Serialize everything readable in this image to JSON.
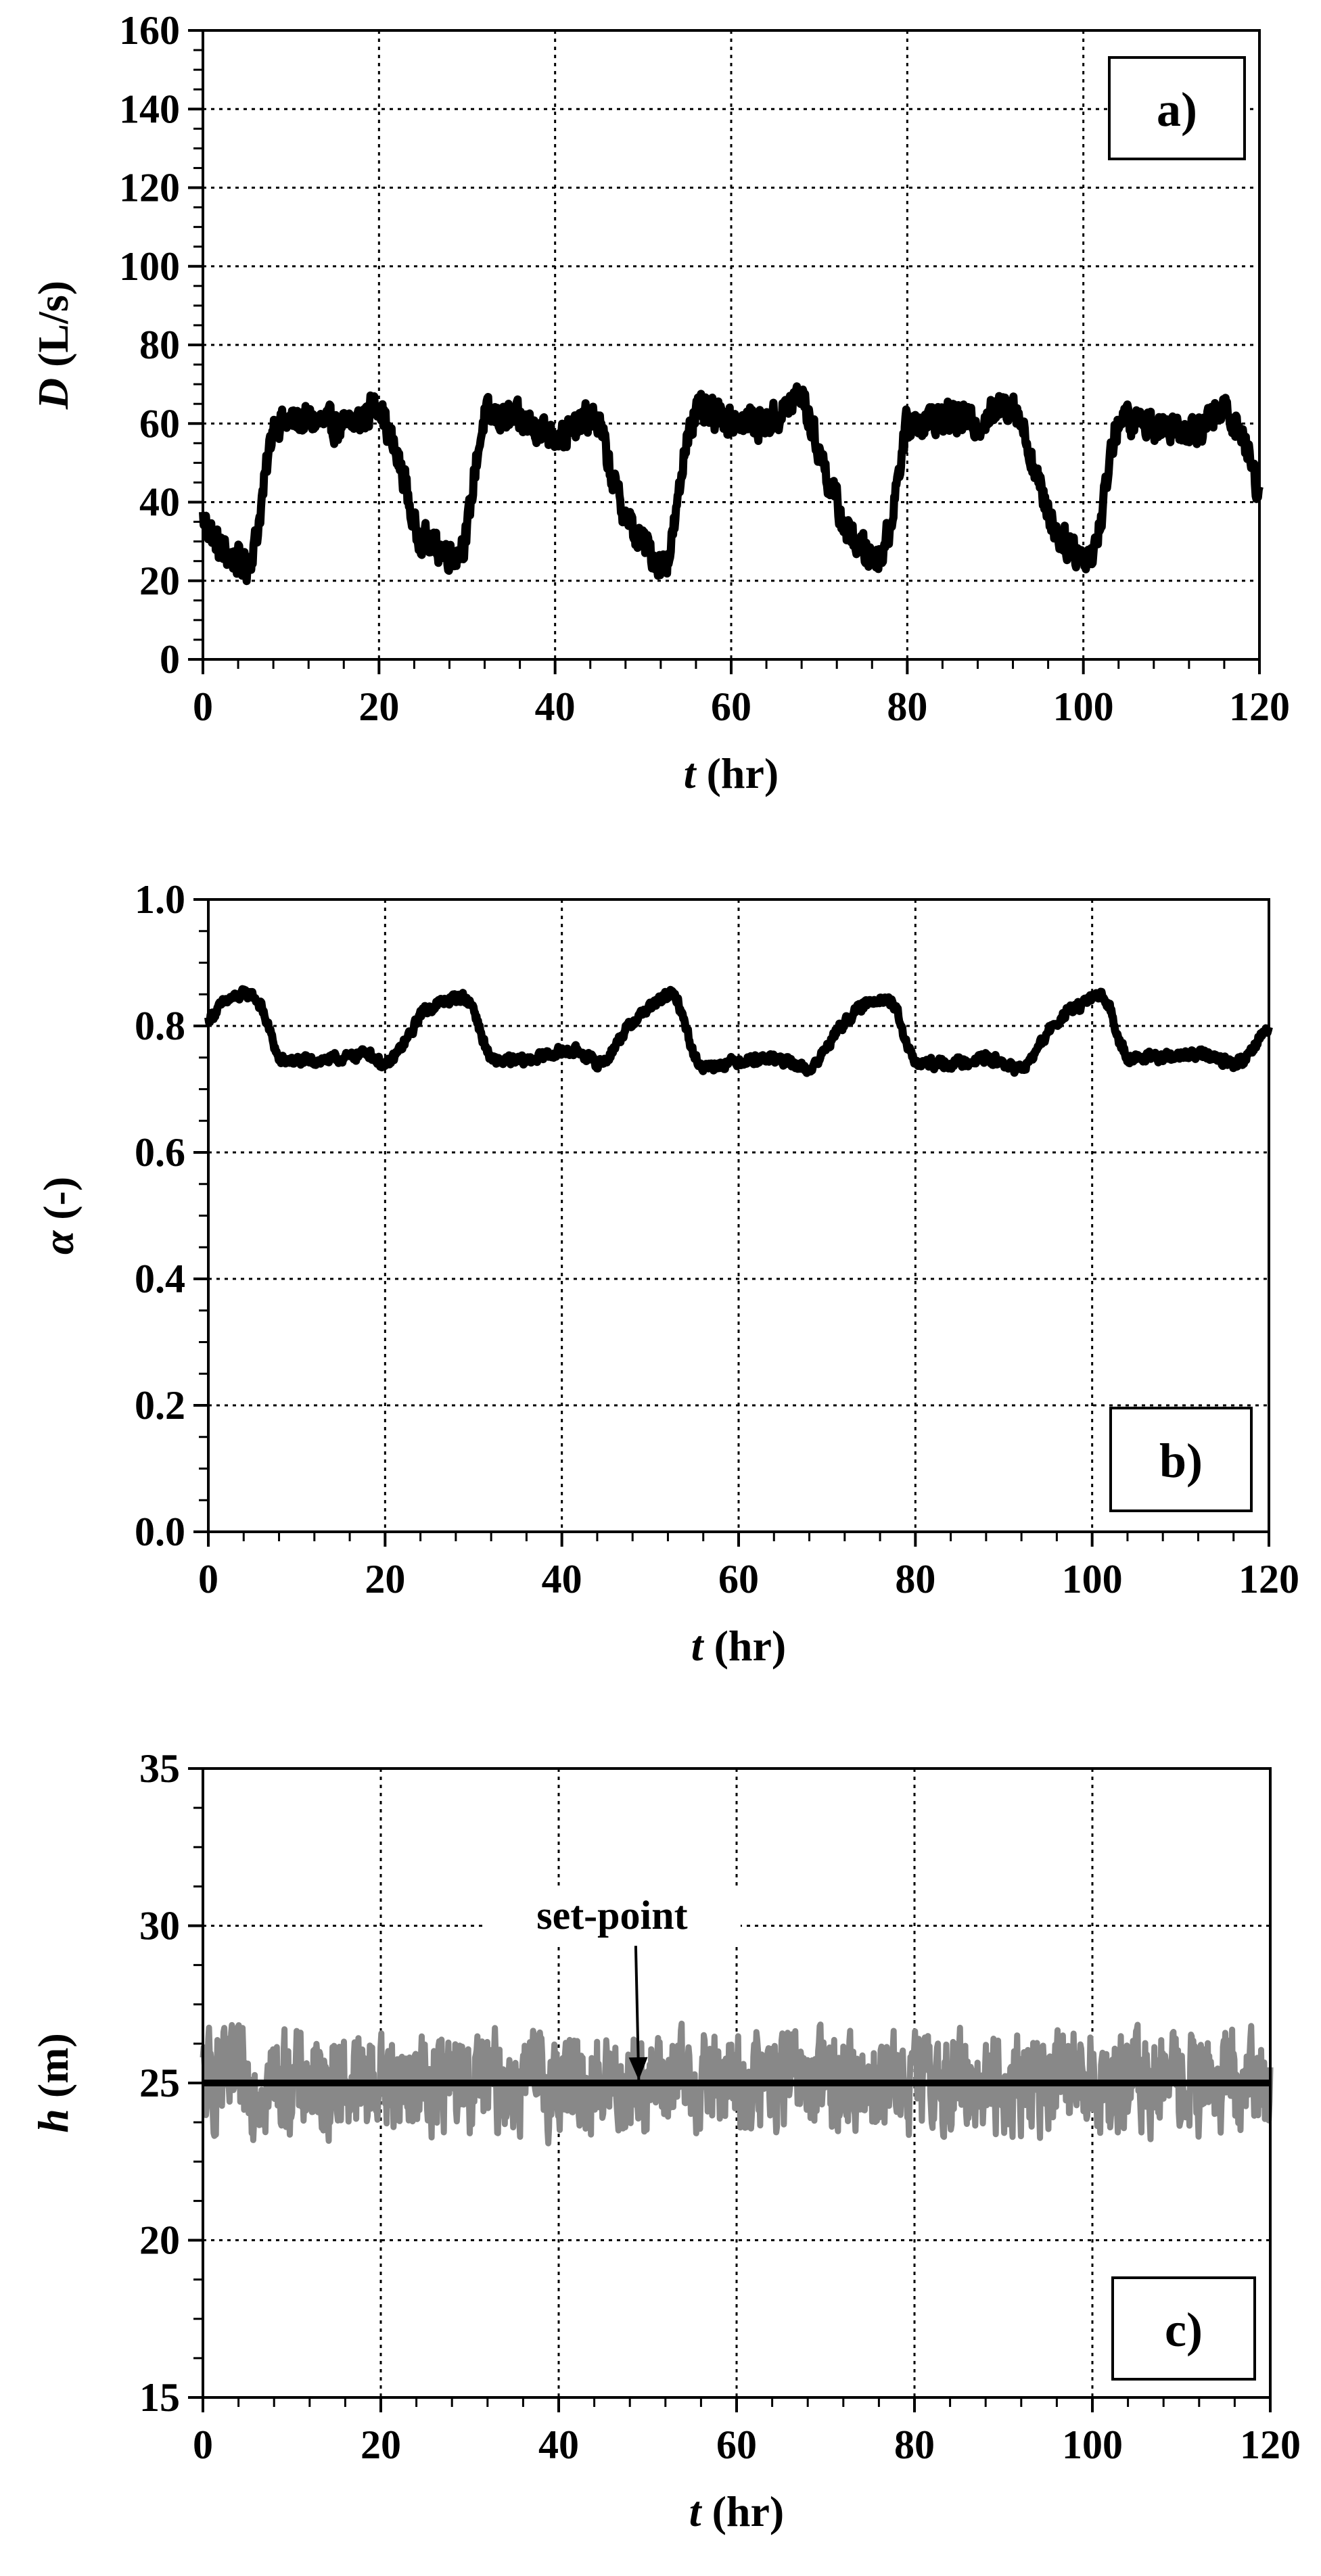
{
  "chart_data": [
    {
      "type": "line",
      "panel_label": "a)",
      "xlabel_var": "t",
      "xlabel_unit": " (hr)",
      "ylabel_var": "D",
      "ylabel_unit": " (L/s)",
      "xlim": [
        0,
        120
      ],
      "ylim": [
        0,
        160
      ],
      "xticks": [
        0,
        20,
        40,
        60,
        80,
        100,
        120
      ],
      "yticks": [
        0,
        20,
        40,
        60,
        80,
        100,
        120,
        140,
        160
      ],
      "xtick_labels": [
        "0",
        "20",
        "40",
        "60",
        "80",
        "100",
        "120"
      ],
      "ytick_labels": [
        "0",
        "20",
        "40",
        "60",
        "80",
        "100",
        "120",
        "140",
        "160"
      ],
      "grid": true,
      "series": [
        {
          "color": "#000000",
          "noise": 3.5,
          "x": [
            0,
            2,
            4,
            5,
            6,
            7,
            8,
            12,
            16,
            18,
            20,
            21,
            23,
            24,
            26,
            28,
            29,
            30,
            31,
            32,
            36,
            40,
            42,
            44,
            45,
            47,
            49,
            51,
            52,
            53,
            54,
            55,
            56,
            60,
            64,
            66,
            68,
            69,
            71,
            73,
            75,
            76,
            77,
            78,
            79,
            80,
            84,
            88,
            90,
            92,
            93,
            95,
            97,
            99,
            100,
            101,
            102,
            103,
            104,
            108,
            112,
            114,
            116,
            117,
            118,
            119,
            120
          ],
          "y": [
            36,
            28,
            25,
            24,
            30,
            45,
            60,
            61,
            59,
            61,
            66,
            58,
            45,
            33,
            29,
            27,
            27,
            32,
            50,
            62,
            61,
            57,
            58,
            62,
            60,
            42,
            32,
            27,
            24,
            27,
            40,
            58,
            63,
            61,
            60,
            63,
            68,
            60,
            46,
            33,
            28,
            26,
            27,
            33,
            48,
            60,
            62,
            60,
            63,
            66,
            60,
            44,
            32,
            28,
            26,
            27,
            35,
            52,
            61,
            60,
            59,
            60,
            64,
            61,
            58,
            50,
            42
          ]
        }
      ]
    },
    {
      "type": "line",
      "panel_label": "b)",
      "xlabel_var": "t",
      "xlabel_unit": " (hr)",
      "ylabel_var": "α",
      "ylabel_unit": " (-)",
      "xlim": [
        0,
        120
      ],
      "ylim": [
        0,
        1.0
      ],
      "xticks": [
        0,
        20,
        40,
        60,
        80,
        100,
        120
      ],
      "yticks": [
        0,
        0.2,
        0.4,
        0.6,
        0.8,
        1.0
      ],
      "xtick_labels": [
        "0",
        "20",
        "40",
        "60",
        "80",
        "100",
        "120"
      ],
      "ytick_labels": [
        "0.0",
        "0.2",
        "0.4",
        "0.6",
        "0.8",
        "1.0"
      ],
      "grid": true,
      "series": [
        {
          "color": "#000000",
          "noise": 0.007,
          "x": [
            0,
            2,
            4,
            5,
            6,
            7,
            8,
            12,
            16,
            18,
            20,
            21,
            23,
            24,
            26,
            28,
            29,
            30,
            31,
            32,
            36,
            40,
            42,
            44,
            45,
            47,
            49,
            51,
            52,
            53,
            54,
            55,
            56,
            60,
            64,
            66,
            68,
            69,
            71,
            73,
            75,
            76,
            77,
            78,
            79,
            80,
            84,
            88,
            90,
            92,
            93,
            95,
            97,
            99,
            100,
            101,
            102,
            103,
            104,
            108,
            112,
            114,
            116,
            117,
            118,
            119,
            120
          ],
          "y": [
            0.81,
            0.84,
            0.85,
            0.85,
            0.83,
            0.79,
            0.745,
            0.745,
            0.75,
            0.76,
            0.735,
            0.75,
            0.79,
            0.82,
            0.835,
            0.845,
            0.845,
            0.83,
            0.78,
            0.745,
            0.745,
            0.76,
            0.76,
            0.74,
            0.745,
            0.79,
            0.82,
            0.84,
            0.85,
            0.845,
            0.8,
            0.75,
            0.735,
            0.745,
            0.75,
            0.74,
            0.73,
            0.745,
            0.79,
            0.82,
            0.84,
            0.845,
            0.84,
            0.82,
            0.77,
            0.74,
            0.74,
            0.75,
            0.74,
            0.73,
            0.745,
            0.79,
            0.82,
            0.835,
            0.845,
            0.845,
            0.83,
            0.78,
            0.75,
            0.75,
            0.755,
            0.75,
            0.74,
            0.745,
            0.76,
            0.785,
            0.795
          ]
        }
      ]
    },
    {
      "type": "line",
      "panel_label": "c)",
      "xlabel_var": "t",
      "xlabel_unit": " (hr)",
      "ylabel_var": "h",
      "ylabel_unit": " (m)",
      "xlim": [
        0,
        120
      ],
      "ylim": [
        15,
        35
      ],
      "xticks": [
        0,
        20,
        40,
        60,
        80,
        100,
        120
      ],
      "yticks": [
        15,
        20,
        25,
        30,
        35
      ],
      "xtick_labels": [
        "0",
        "20",
        "40",
        "60",
        "80",
        "100",
        "120"
      ],
      "ytick_labels": [
        "15",
        "20",
        "25",
        "30",
        "35"
      ],
      "grid": true,
      "series": [
        {
          "color": "#888888",
          "noise": 1.4,
          "x": [
            0,
            120
          ],
          "y": [
            25,
            25
          ]
        },
        {
          "color": "#000000",
          "noise": 0,
          "x": [
            0,
            120
          ],
          "y": [
            25,
            25
          ]
        }
      ],
      "annotation": {
        "text": "set-point",
        "x": 49,
        "y": 25
      }
    }
  ]
}
